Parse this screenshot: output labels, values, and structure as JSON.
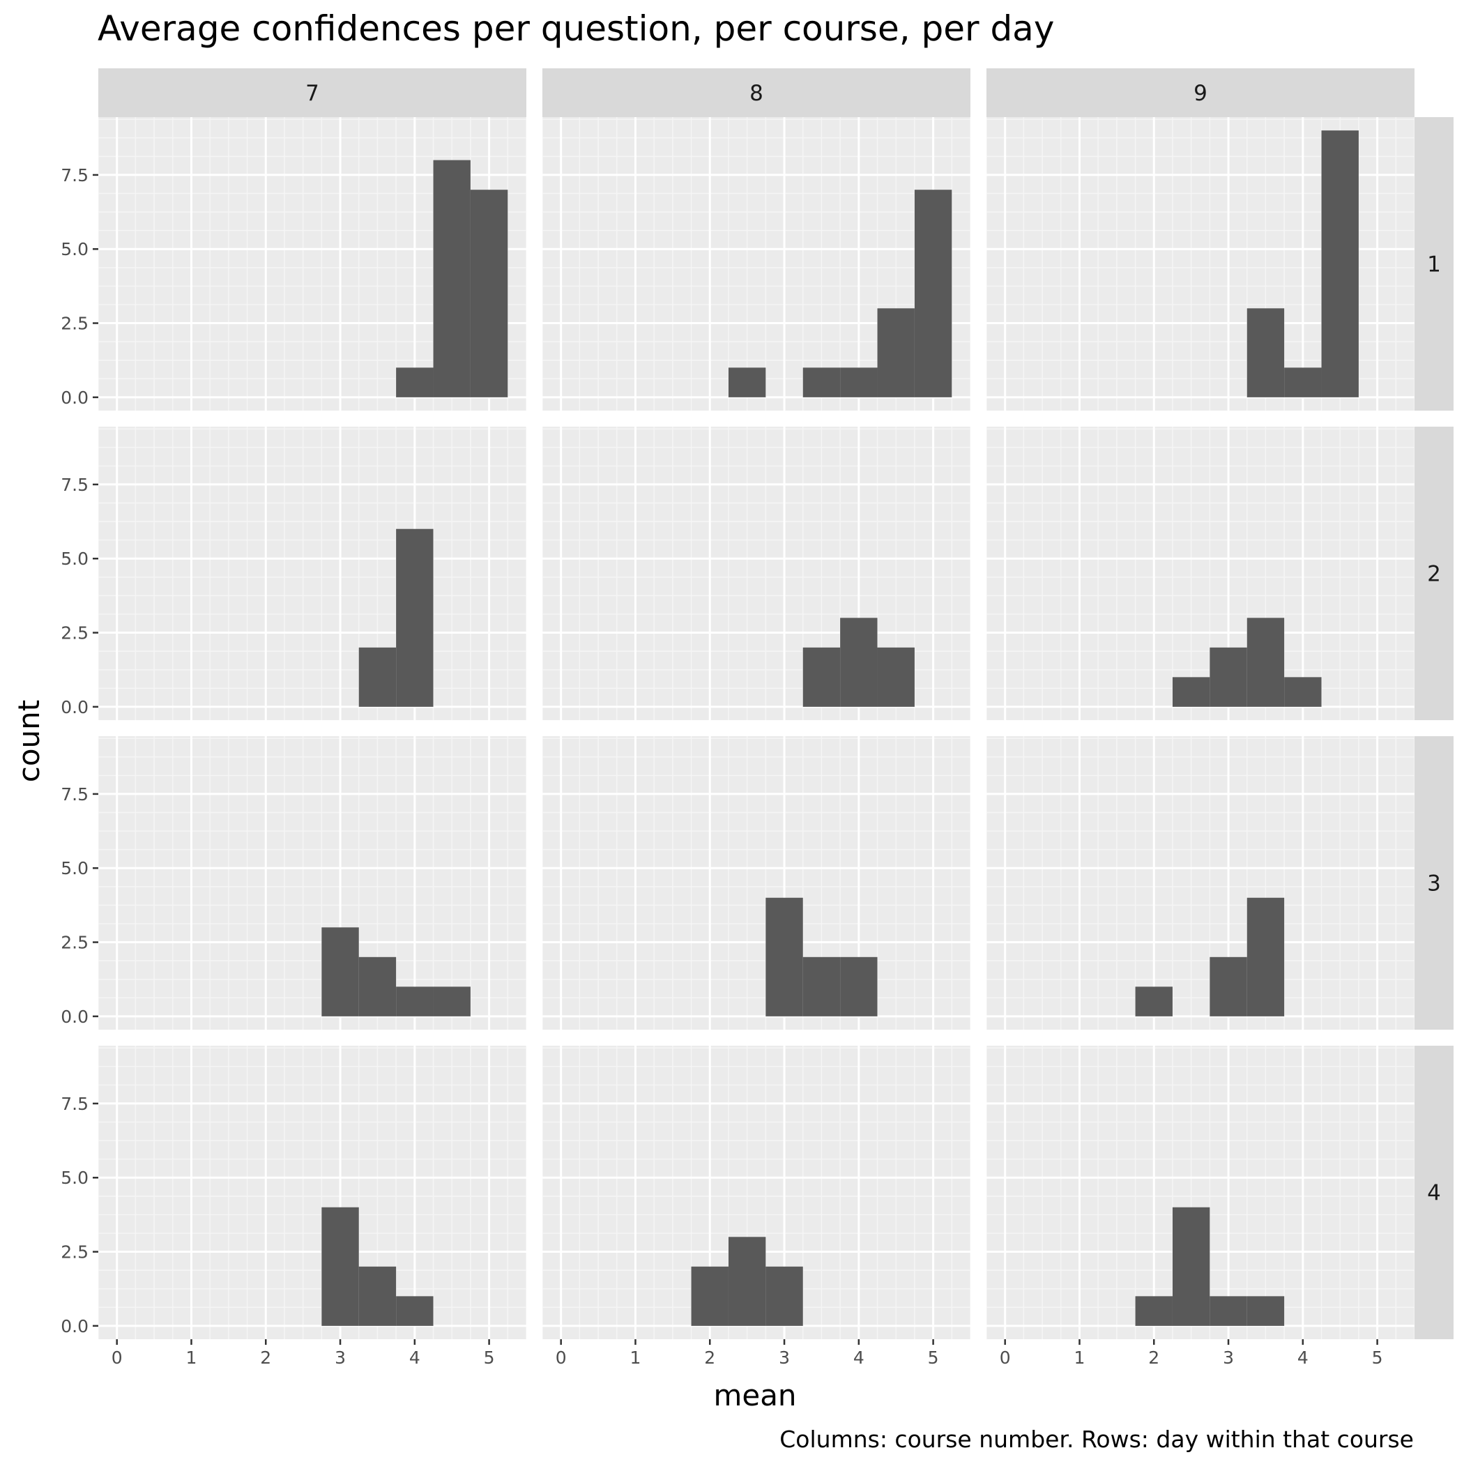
{
  "chart_data": {
    "type": "bar",
    "title": "Average confidences per question, per course, per day",
    "xlabel": "mean",
    "ylabel": "count",
    "caption": "Columns: course number. Rows: day within that course",
    "facet_columns": [
      "7",
      "8",
      "9"
    ],
    "facet_rows": [
      "1",
      "2",
      "3",
      "4"
    ],
    "xlim": [
      -0.25,
      5.5
    ],
    "ylim": [
      -0.45,
      9.45
    ],
    "x_ticks": [
      0,
      1,
      2,
      3,
      4,
      5
    ],
    "y_ticks": [
      0,
      2.5,
      5,
      7.5
    ],
    "x_tick_labels": [
      "0",
      "1",
      "2",
      "3",
      "4",
      "5"
    ],
    "y_tick_labels": [
      "0.0",
      "2.5",
      "5.0",
      "7.5"
    ],
    "bin_width": 0.5,
    "grid": true,
    "panels": [
      {
        "column": "7",
        "row": "1",
        "bins": [
          [
            4.0,
            1
          ],
          [
            4.5,
            8
          ],
          [
            5.0,
            7
          ]
        ]
      },
      {
        "column": "8",
        "row": "1",
        "bins": [
          [
            2.5,
            1
          ],
          [
            3.5,
            1
          ],
          [
            4.0,
            1
          ],
          [
            4.5,
            3
          ],
          [
            5.0,
            7
          ]
        ]
      },
      {
        "column": "9",
        "row": "1",
        "bins": [
          [
            3.5,
            3
          ],
          [
            4.0,
            1
          ],
          [
            4.5,
            9
          ]
        ]
      },
      {
        "column": "7",
        "row": "2",
        "bins": [
          [
            3.5,
            2
          ],
          [
            4.0,
            6
          ]
        ]
      },
      {
        "column": "8",
        "row": "2",
        "bins": [
          [
            3.5,
            2
          ],
          [
            4.0,
            3
          ],
          [
            4.5,
            2
          ]
        ]
      },
      {
        "column": "9",
        "row": "2",
        "bins": [
          [
            2.5,
            1
          ],
          [
            3.0,
            2
          ],
          [
            3.5,
            3
          ],
          [
            4.0,
            1
          ]
        ]
      },
      {
        "column": "7",
        "row": "3",
        "bins": [
          [
            3.0,
            3
          ],
          [
            3.5,
            2
          ],
          [
            4.0,
            1
          ],
          [
            4.5,
            1
          ]
        ]
      },
      {
        "column": "8",
        "row": "3",
        "bins": [
          [
            3.0,
            4
          ],
          [
            3.5,
            2
          ],
          [
            4.0,
            2
          ]
        ]
      },
      {
        "column": "9",
        "row": "3",
        "bins": [
          [
            2.0,
            1
          ],
          [
            3.0,
            2
          ],
          [
            3.5,
            4
          ]
        ]
      },
      {
        "column": "7",
        "row": "4",
        "bins": [
          [
            3.0,
            4
          ],
          [
            3.5,
            2
          ],
          [
            4.0,
            1
          ]
        ]
      },
      {
        "column": "8",
        "row": "4",
        "bins": [
          [
            2.0,
            2
          ],
          [
            2.5,
            3
          ],
          [
            3.0,
            2
          ]
        ]
      },
      {
        "column": "9",
        "row": "4",
        "bins": [
          [
            2.0,
            1
          ],
          [
            2.5,
            4
          ],
          [
            3.0,
            1
          ],
          [
            3.5,
            1
          ]
        ]
      }
    ],
    "colors": {
      "panel_background": "#ebebeb",
      "grid_major": "#ffffff",
      "grid_minor": "#f5f5f5",
      "strip_background": "#d9d9d9",
      "bar_fill": "#595959",
      "tick_color": "#333333"
    }
  }
}
